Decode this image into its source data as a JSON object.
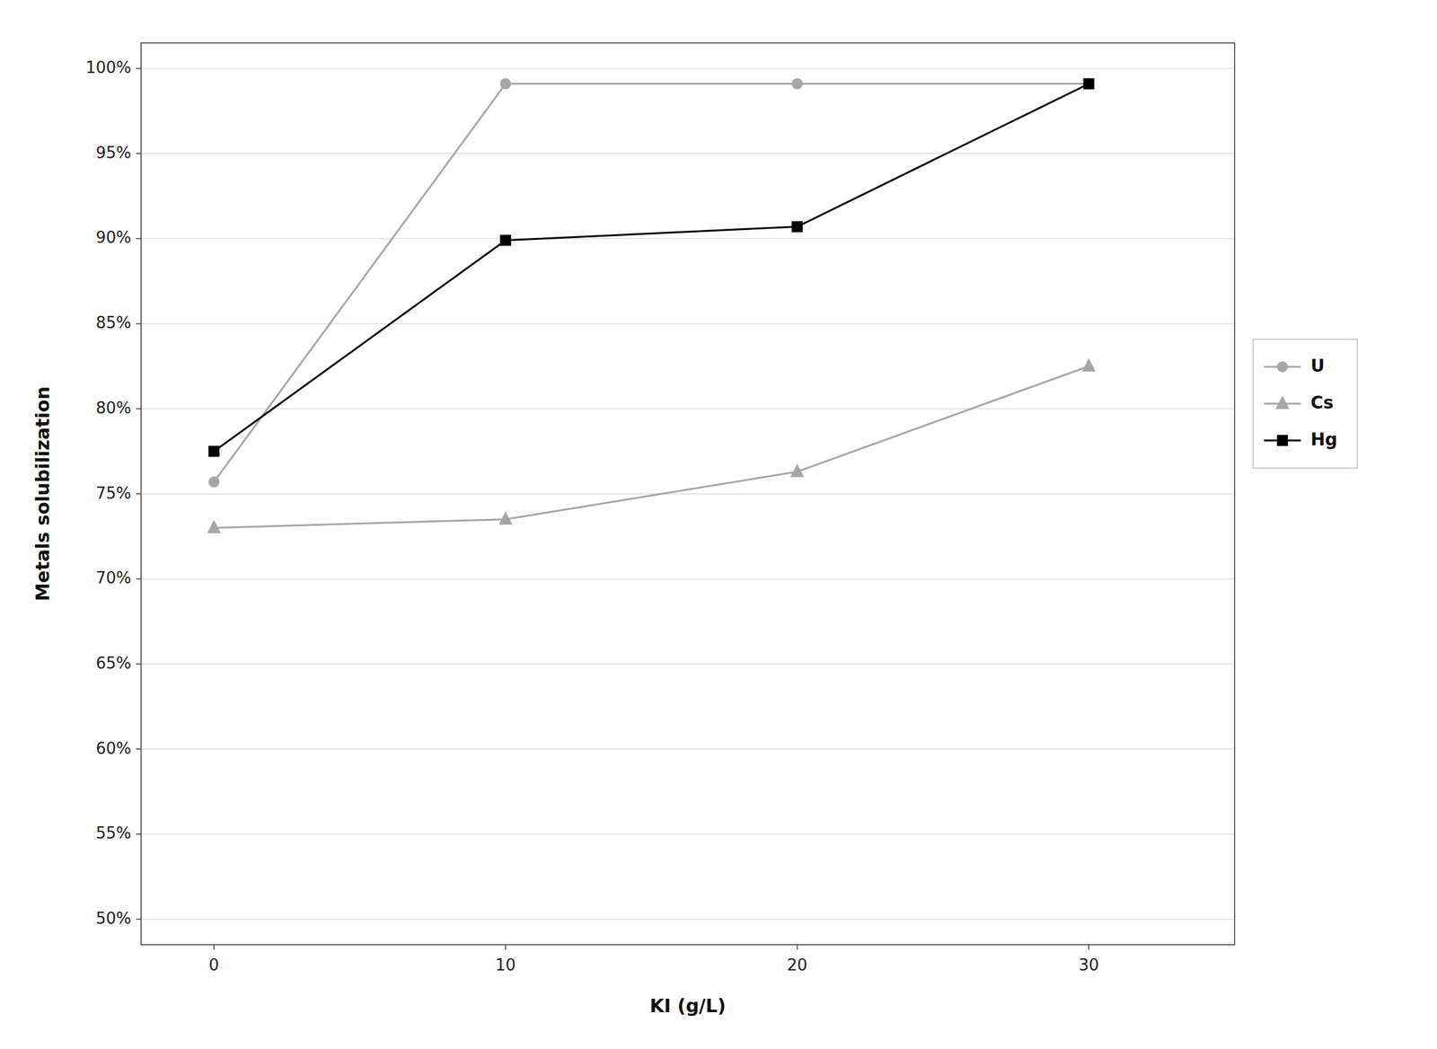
{
  "chart_data": {
    "type": "line",
    "xlabel": "KI (g/L)",
    "ylabel": "Metals solubilization",
    "x": [
      0,
      10,
      20,
      30
    ],
    "series": [
      {
        "name": "U",
        "color": "#a6a6a6",
        "marker": "circle",
        "values": [
          0.757,
          0.991,
          0.991,
          0.991
        ]
      },
      {
        "name": "Cs",
        "color": "#a6a6a6",
        "marker": "triangle",
        "values": [
          0.73,
          0.735,
          0.763,
          0.825
        ]
      },
      {
        "name": "Hg",
        "color": "#000000",
        "marker": "square",
        "values": [
          0.775,
          0.899,
          0.907,
          0.991
        ]
      }
    ],
    "xlim": [
      -2.5,
      35
    ],
    "xticks": [
      0,
      10,
      20,
      30
    ],
    "ylim": [
      0.485,
      1.015
    ],
    "yticks": [
      {
        "value": 0.5,
        "label": "50%"
      },
      {
        "value": 0.55,
        "label": "55%"
      },
      {
        "value": 0.6,
        "label": "60%"
      },
      {
        "value": 0.65,
        "label": "65%"
      },
      {
        "value": 0.7,
        "label": "70%"
      },
      {
        "value": 0.75,
        "label": "75%"
      },
      {
        "value": 0.8,
        "label": "80%"
      },
      {
        "value": 0.85,
        "label": "85%"
      },
      {
        "value": 0.9,
        "label": "90%"
      },
      {
        "value": 0.95,
        "label": "95%"
      },
      {
        "value": 1.0,
        "label": "100%"
      }
    ],
    "grid": "y",
    "legend": "right"
  }
}
